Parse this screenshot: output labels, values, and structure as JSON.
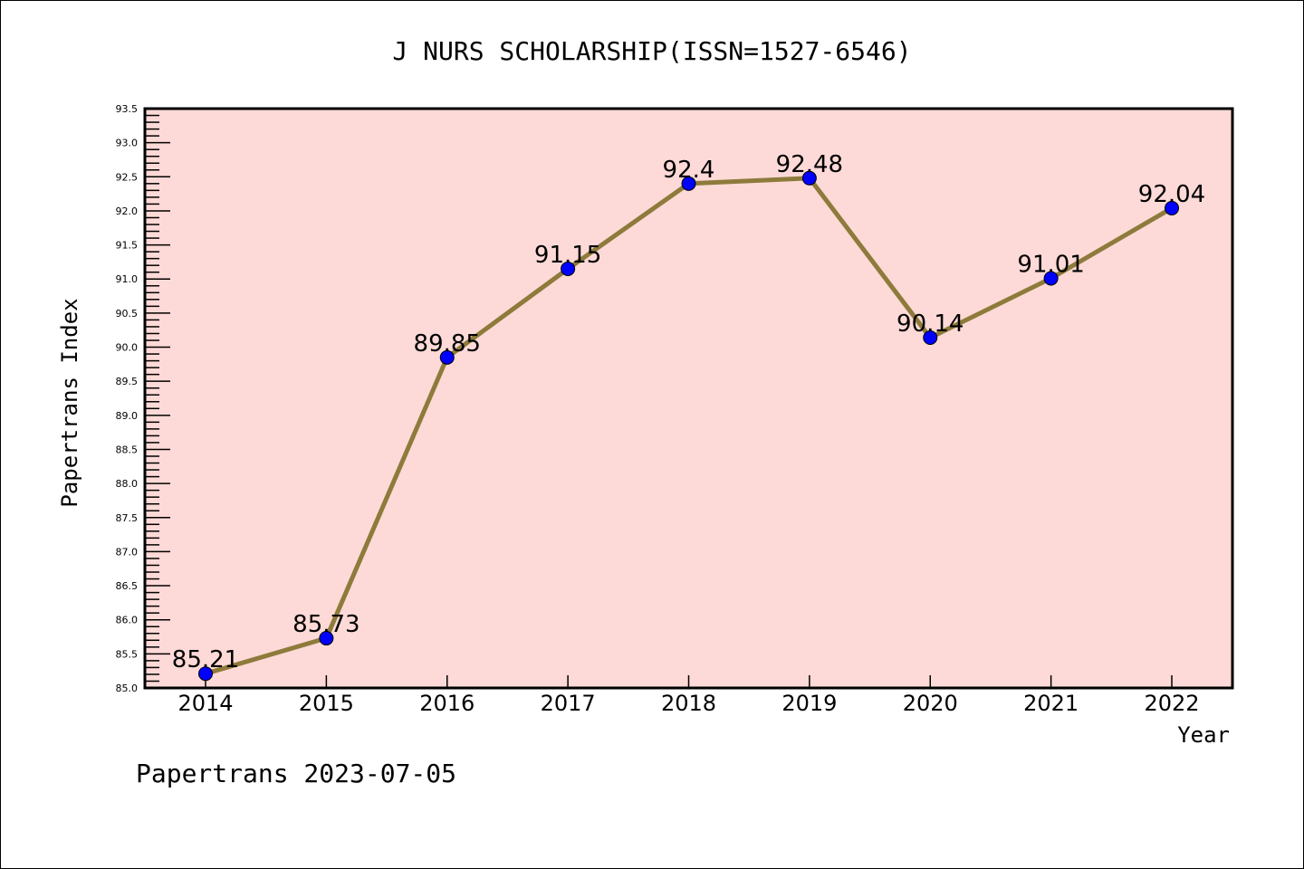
{
  "chart_data": {
    "type": "line",
    "title": "J NURS SCHOLARSHIP(ISSN=1527-6546)",
    "xlabel": "Year",
    "ylabel": "Papertrans Index",
    "x": [
      "2014",
      "2015",
      "2016",
      "2017",
      "2018",
      "2019",
      "2020",
      "2021",
      "2022"
    ],
    "series": [
      {
        "name": "Papertrans Index",
        "values": [
          85.21,
          85.73,
          89.85,
          91.15,
          92.4,
          92.48,
          90.14,
          91.01,
          92.04
        ],
        "labels": [
          "85.21",
          "85.73",
          "89.85",
          "91.15",
          "92.4",
          "92.48",
          "90.14",
          "91.01",
          "92.04"
        ]
      }
    ],
    "ylim": [
      85.0,
      93.5
    ],
    "yticks": [
      "85.0",
      "85.5",
      "86.0",
      "86.5",
      "87.0",
      "87.5",
      "88.0",
      "88.5",
      "89.0",
      "89.5",
      "90.0",
      "90.5",
      "91.0",
      "91.5",
      "92.0",
      "92.5",
      "93.0",
      "93.5"
    ],
    "grid": false,
    "footer": "Papertrans 2023-07-05",
    "colors": {
      "background": "#fddad7",
      "line": "#8e7b3c",
      "marker": "#0000ff"
    }
  }
}
